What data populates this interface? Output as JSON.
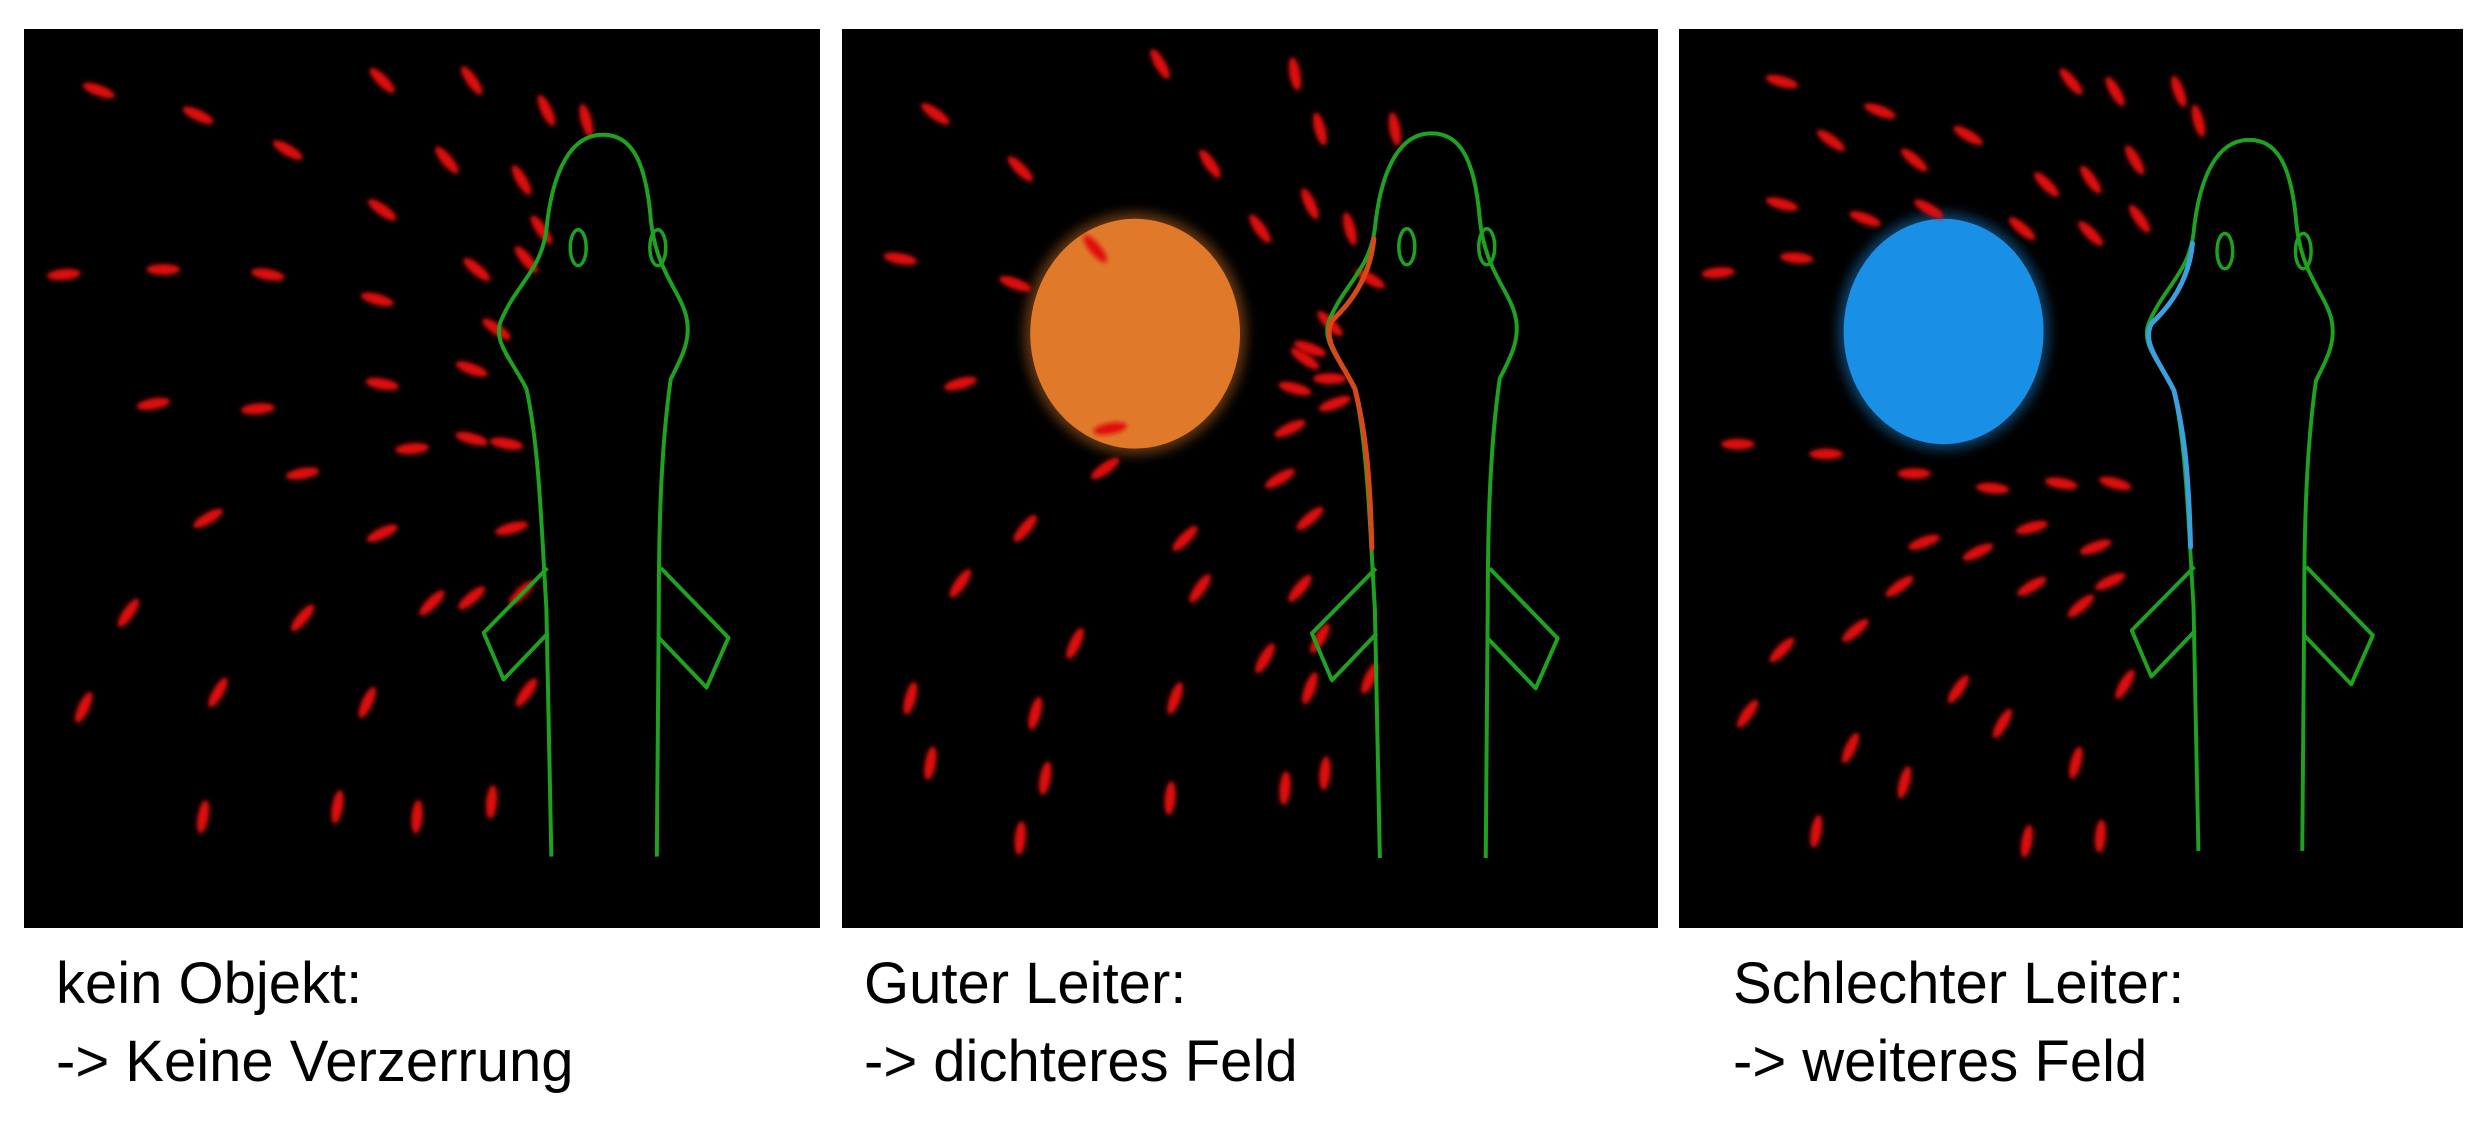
{
  "panels": [
    {
      "label": "kein Objekt:",
      "effect": "-> Keine Verzerrung",
      "object": "none",
      "object_color": "",
      "field_line_color": "#e01010"
    },
    {
      "label": "Guter Leiter:",
      "effect": "-> dichteres Feld",
      "object": "sphere",
      "object_color": "#e07a2a",
      "field_line_color": "#e01010"
    },
    {
      "label": "Schlechter Leiter:",
      "effect": "-> weiteres Feld",
      "object": "sphere",
      "object_color": "#1a8fe6",
      "field_line_color": "#e01010"
    }
  ],
  "colors": {
    "fish_outline": "#1fa21f",
    "background": "#000000"
  }
}
